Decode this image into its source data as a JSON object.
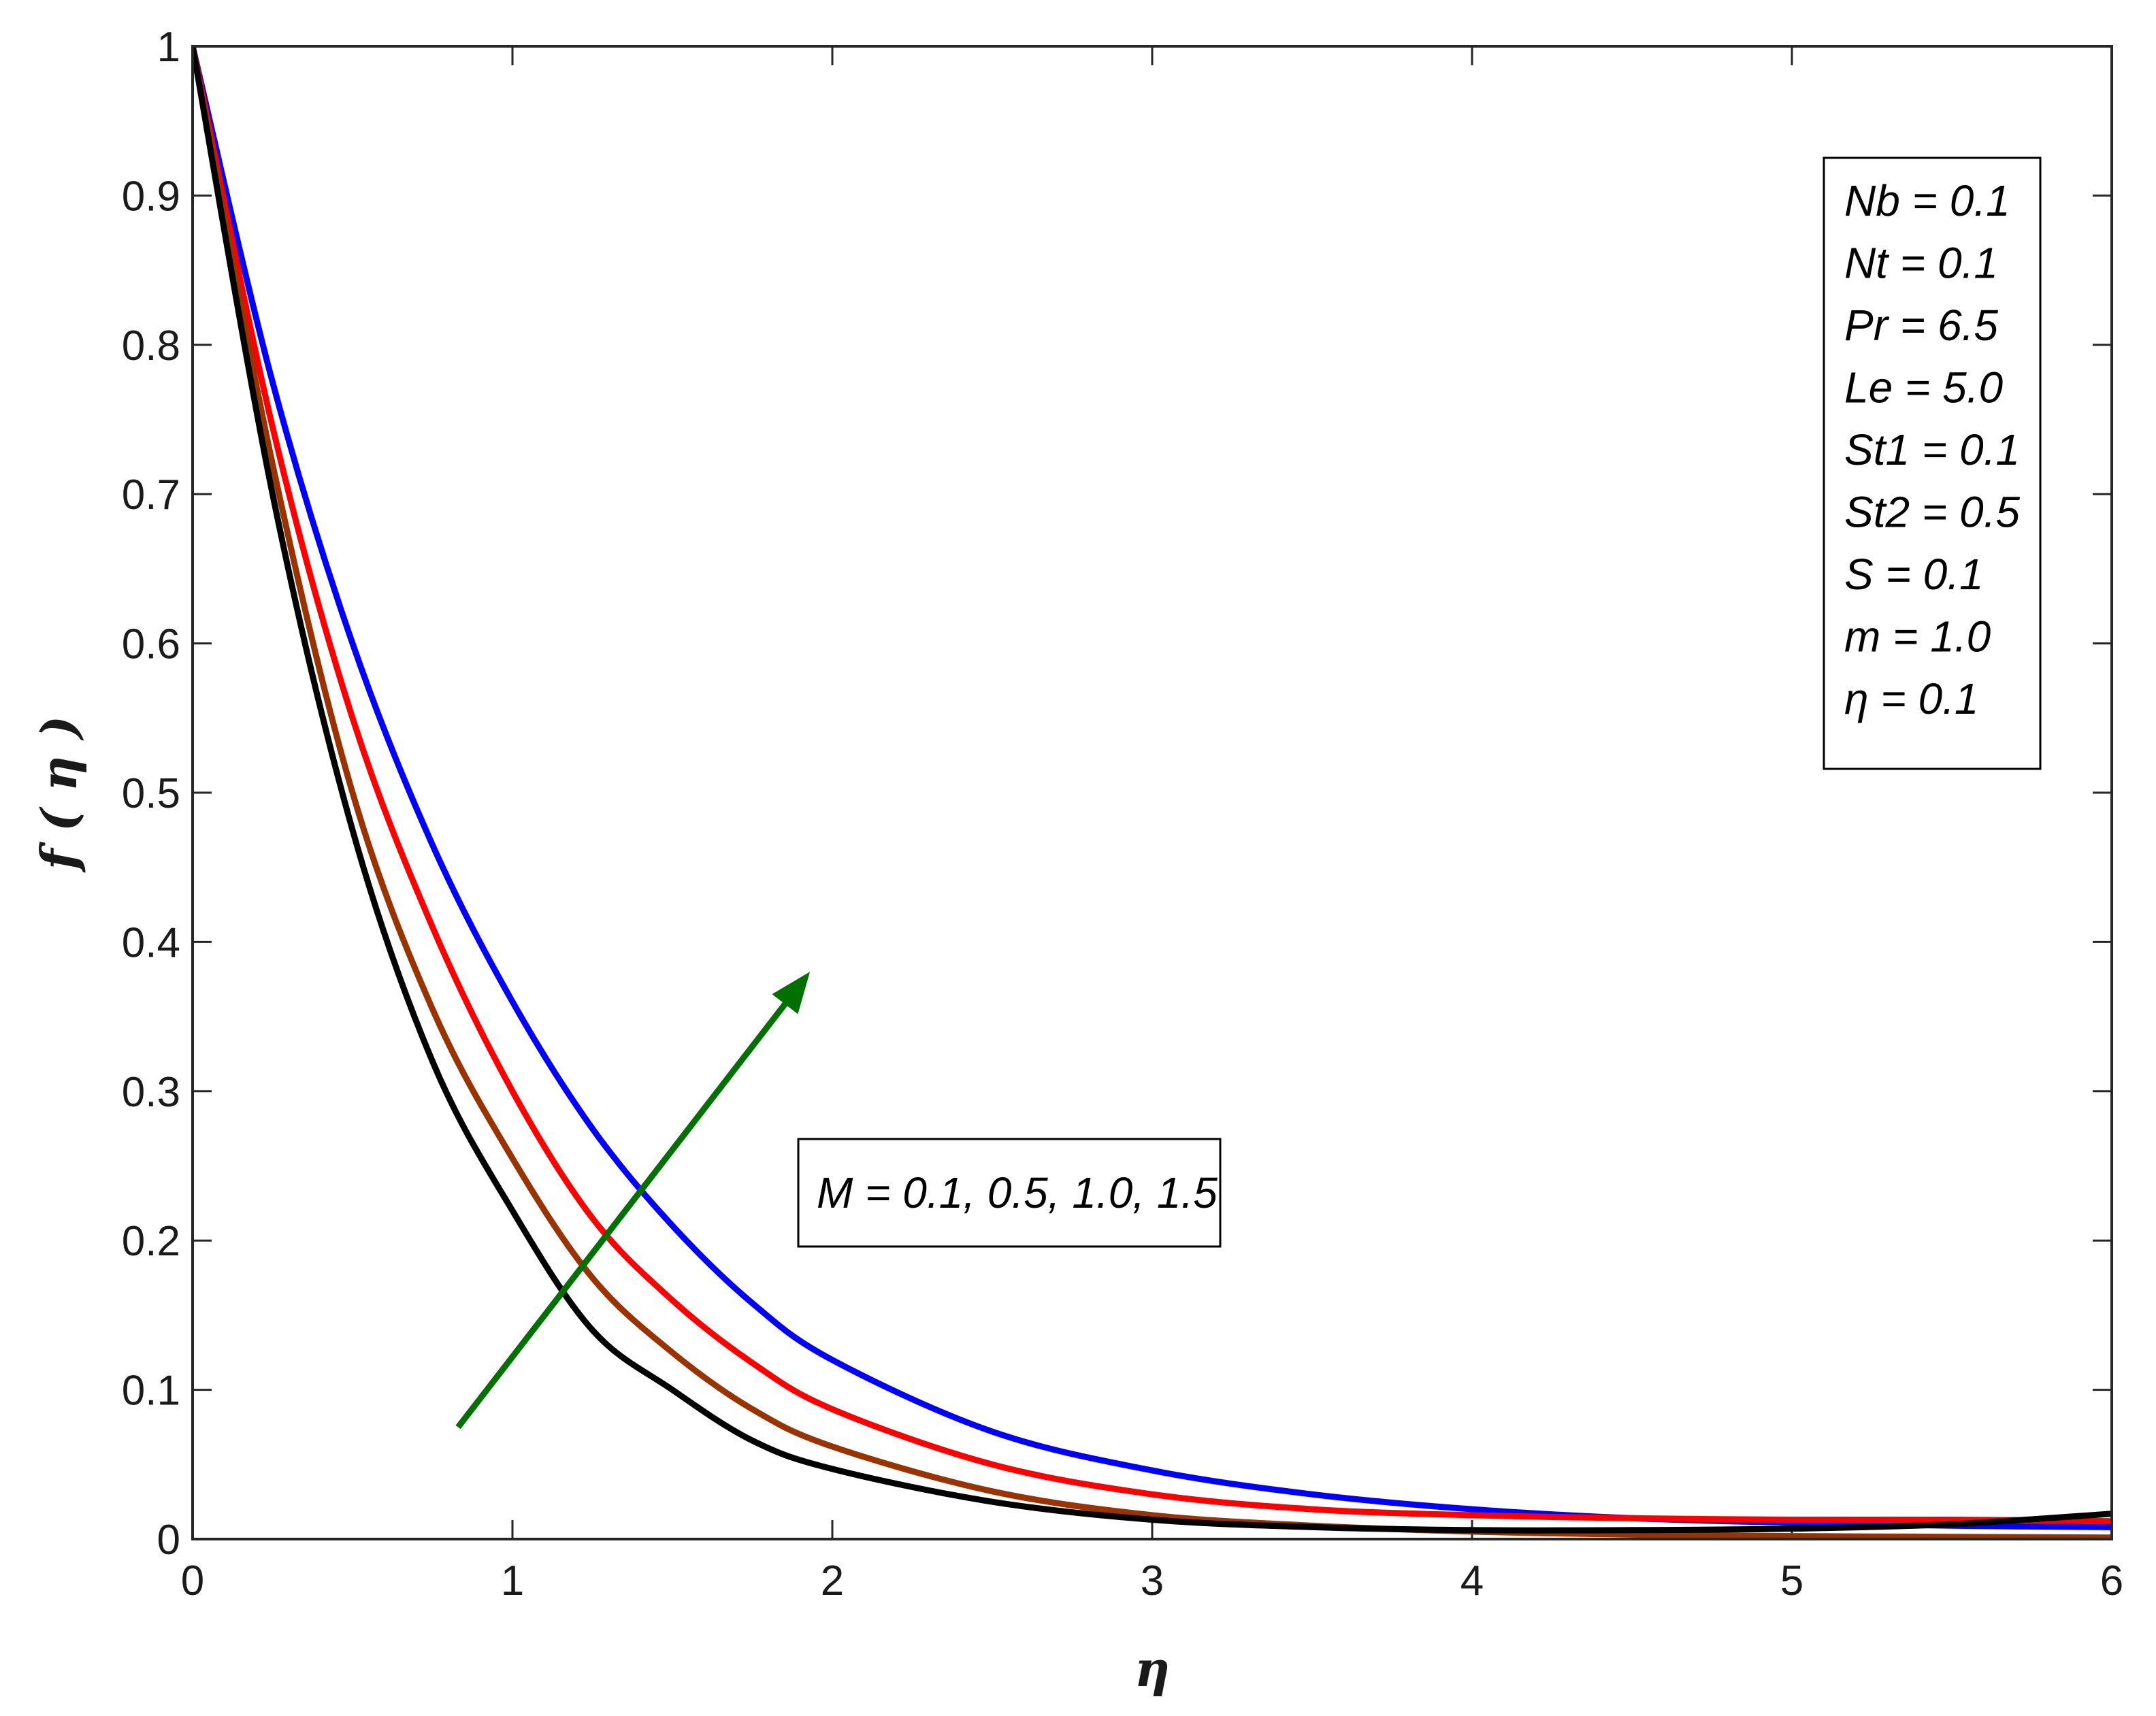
{
  "chart_data": {
    "type": "line",
    "xlabel": "η",
    "ylabel": "f ( η )",
    "xlim": [
      0,
      6
    ],
    "ylim": [
      0,
      1
    ],
    "xticks": [
      "0",
      "1",
      "2",
      "3",
      "4",
      "5",
      "6"
    ],
    "yticks": [
      "0",
      "0.1",
      "0.2",
      "0.3",
      "0.4",
      "0.5",
      "0.6",
      "0.7",
      "0.8",
      "0.9",
      "1"
    ],
    "grid": false,
    "series": [
      {
        "color": "#0000ff",
        "x": [
          0,
          0.25,
          0.5,
          0.75,
          1.0,
          1.25,
          1.5,
          1.75,
          2.0,
          2.5,
          3.0,
          3.5,
          4.0,
          4.5,
          5.0,
          5.5,
          6.0
        ],
        "y": [
          1.0,
          0.775,
          0.6,
          0.465,
          0.36,
          0.275,
          0.21,
          0.158,
          0.12,
          0.072,
          0.046,
          0.03,
          0.02,
          0.014,
          0.011,
          0.009,
          0.008
        ]
      },
      {
        "color": "#ff0000",
        "x": [
          0,
          0.25,
          0.5,
          0.75,
          1.0,
          1.25,
          1.5,
          1.75,
          2.0,
          2.5,
          3.0,
          3.5,
          4.0,
          4.5,
          5.0,
          5.5,
          6.0
        ],
        "y": [
          1.0,
          0.745,
          0.55,
          0.41,
          0.3,
          0.215,
          0.16,
          0.118,
          0.087,
          0.05,
          0.03,
          0.02,
          0.016,
          0.014,
          0.013,
          0.013,
          0.012
        ]
      },
      {
        "color": "#993300",
        "x": [
          0,
          0.25,
          0.5,
          0.75,
          1.0,
          1.25,
          1.5,
          1.75,
          2.0,
          2.5,
          3.0,
          3.5,
          4.0,
          4.5,
          5.0,
          5.5,
          6.0
        ],
        "y": [
          1.0,
          0.72,
          0.5,
          0.355,
          0.255,
          0.175,
          0.125,
          0.087,
          0.062,
          0.032,
          0.016,
          0.009,
          0.005,
          0.003,
          0.002,
          0.0015,
          0.001
        ]
      },
      {
        "color": "#000000",
        "x": [
          0,
          0.25,
          0.5,
          0.75,
          1.0,
          1.25,
          1.5,
          1.75,
          2.0,
          2.5,
          3.0,
          3.5,
          4.0,
          4.5,
          5.0,
          5.5,
          6.0
        ],
        "y": [
          1.0,
          0.7,
          0.475,
          0.32,
          0.22,
          0.14,
          0.1,
          0.066,
          0.047,
          0.025,
          0.013,
          0.008,
          0.006,
          0.006,
          0.007,
          0.01,
          0.017
        ]
      }
    ],
    "annotations": {
      "legend_lines": [
        "Nb  = 0.1",
        "Nt  = 0.1",
        "Pr = 6.5",
        "Le = 5.0",
        "St1 = 0.1",
        "St2 = 0.5",
        "S = 0.1",
        "m = 1.0",
        "η = 0.1"
      ],
      "legend_placement": "top-right",
      "parameter_label": "M  = 0.1, 0.5, 1.0, 1.5",
      "arrow": {
        "color": "#007000",
        "from": [
          0.83,
          0.075
        ],
        "to": [
          1.93,
          0.38
        ]
      }
    }
  }
}
